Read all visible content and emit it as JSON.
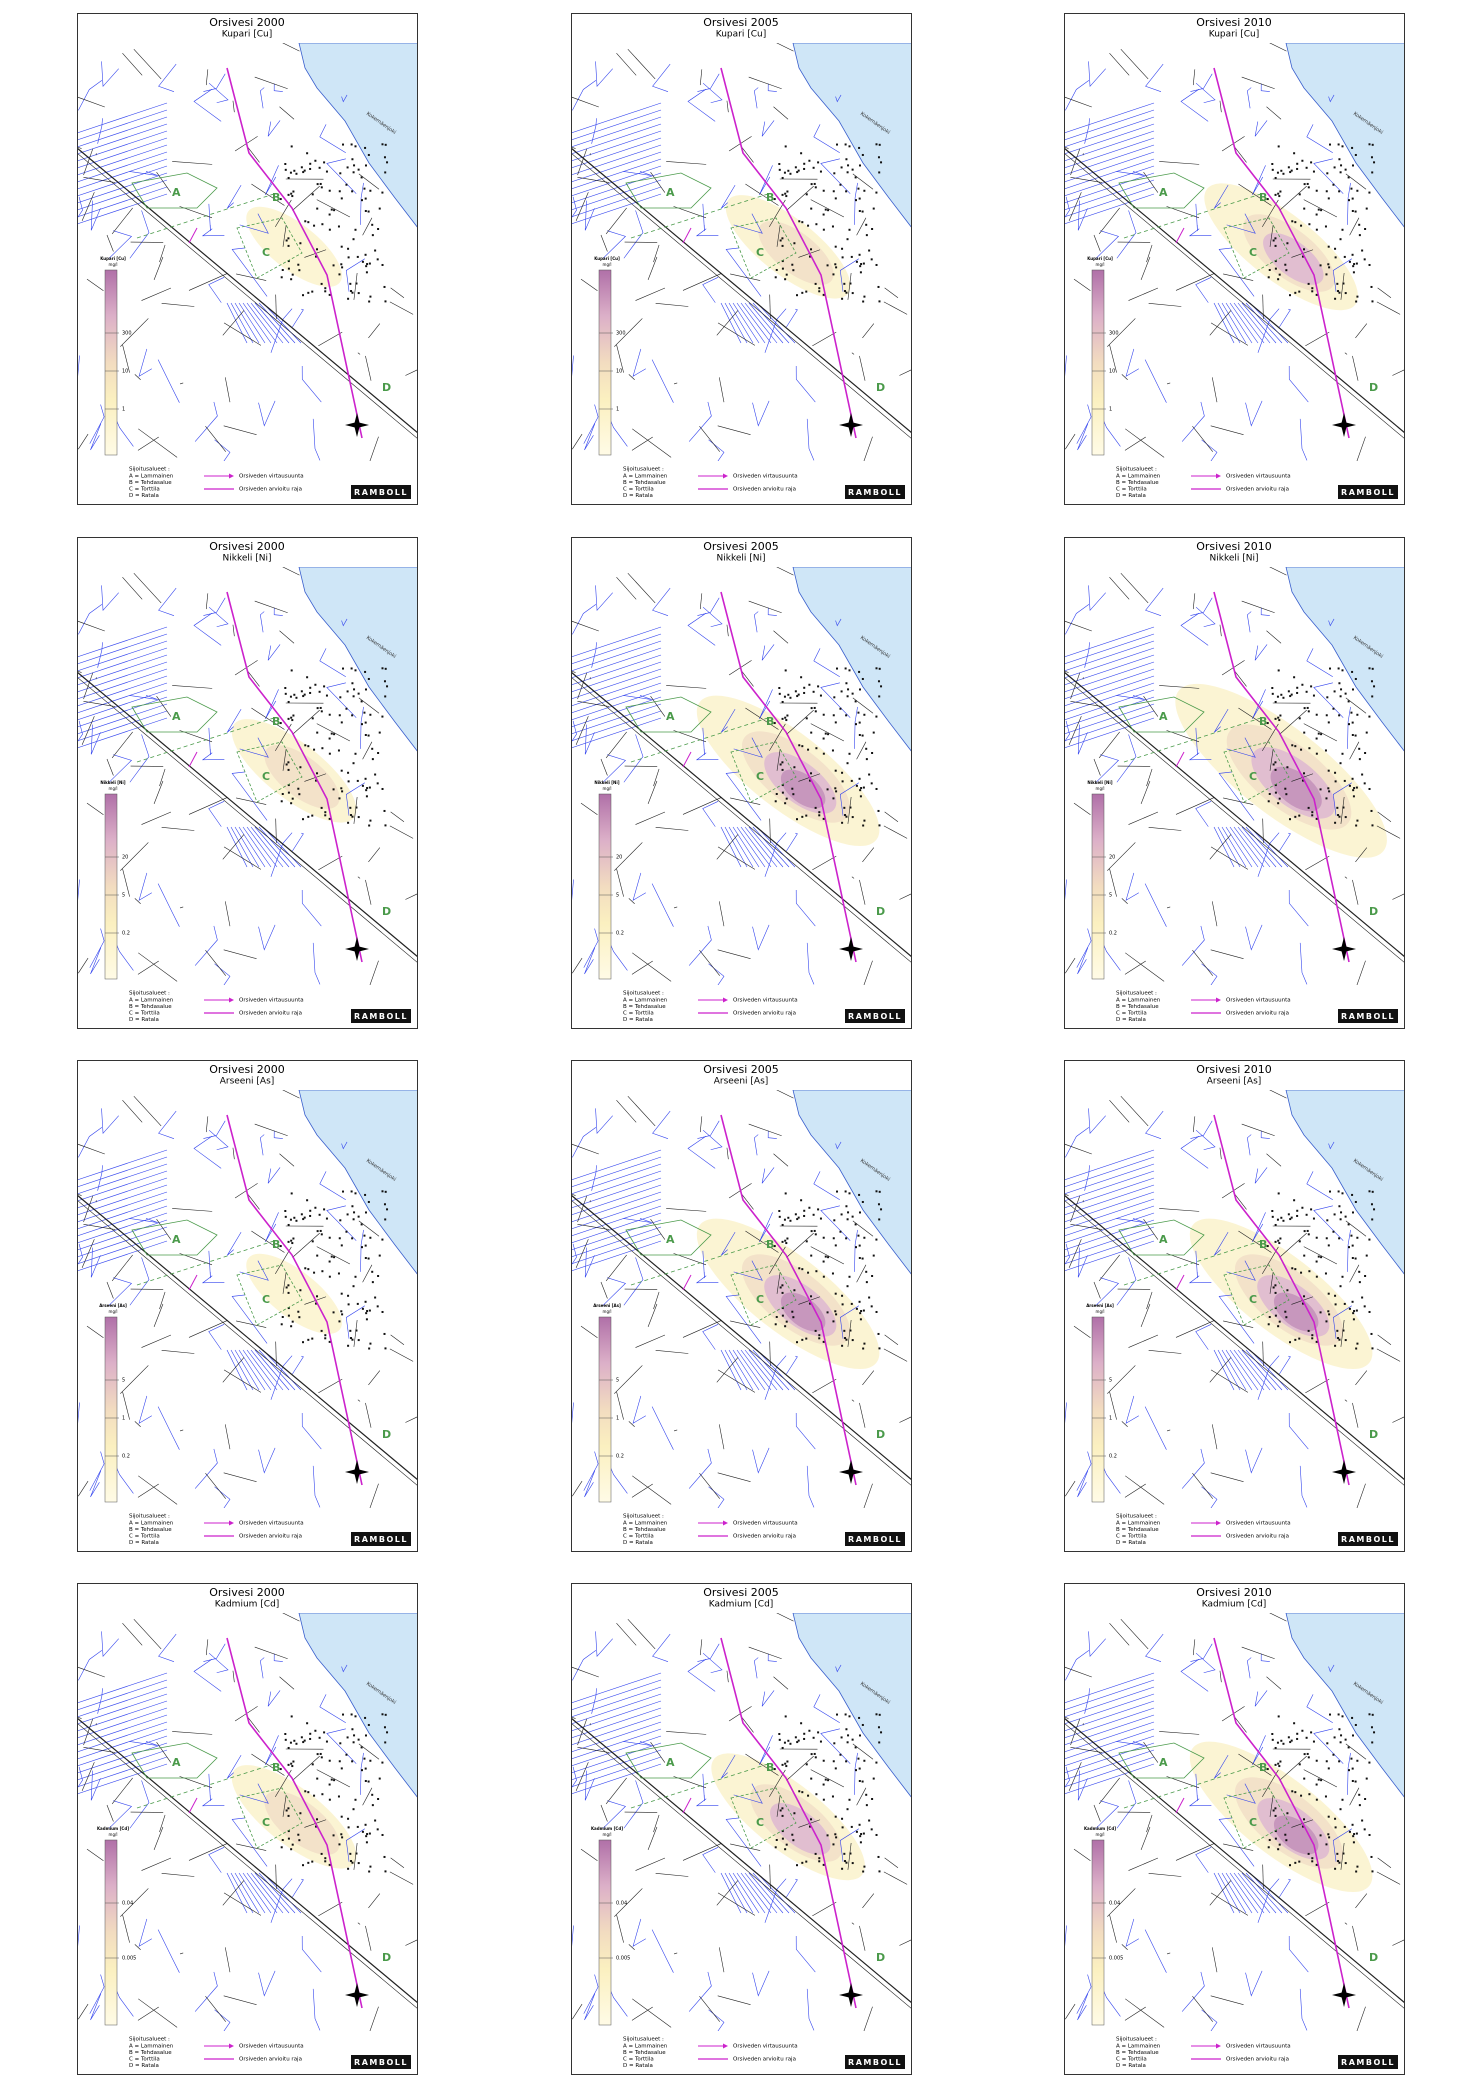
{
  "panels": [
    {
      "title": "Orsivesi 2000",
      "subtitle": "Kupari [Cu]",
      "scale_title": "Kupari [Cu]",
      "scale_unit": "mg/l",
      "scale_labels": [
        "300",
        "10",
        "1"
      ]
    },
    {
      "title": "Orsivesi 2005",
      "subtitle": "Kupari [Cu]",
      "scale_title": "Kupari [Cu]",
      "scale_unit": "mg/l",
      "scale_labels": [
        "300",
        "10",
        "1"
      ]
    },
    {
      "title": "Orsivesi 2010",
      "subtitle": "Kupari [Cu]",
      "scale_title": "Kupari [Cu]",
      "scale_unit": "mg/l",
      "scale_labels": [
        "300",
        "10",
        "1"
      ]
    },
    {
      "title": "Orsivesi 2000",
      "subtitle": "Nikkeli [Ni]",
      "scale_title": "Nikkeli [Ni]",
      "scale_unit": "mg/l",
      "scale_labels": [
        "20",
        "5",
        "0.2"
      ]
    },
    {
      "title": "Orsivesi 2005",
      "subtitle": "Nikkeli [Ni]",
      "scale_title": "Nikkeli [Ni]",
      "scale_unit": "mg/l",
      "scale_labels": [
        "20",
        "5",
        "0.2"
      ]
    },
    {
      "title": "Orsivesi 2010",
      "subtitle": "Nikkeli [Ni]",
      "scale_title": "Nikkeli [Ni]",
      "scale_unit": "mg/l",
      "scale_labels": [
        "20",
        "5",
        "0.2"
      ]
    },
    {
      "title": "Orsivesi 2000",
      "subtitle": "Arseeni [As]",
      "scale_title": "Arseeni [As]",
      "scale_unit": "mg/l",
      "scale_labels": [
        "5",
        "1",
        "0.2"
      ]
    },
    {
      "title": "Orsivesi 2005",
      "subtitle": "Arseeni [As]",
      "scale_title": "Arseeni [As]",
      "scale_unit": "mg/l",
      "scale_labels": [
        "5",
        "1",
        "0.2"
      ]
    },
    {
      "title": "Orsivesi 2010",
      "subtitle": "Arseeni [As]",
      "scale_title": "Arseeni [As]",
      "scale_unit": "mg/l",
      "scale_labels": [
        "5",
        "1",
        "0.2"
      ]
    },
    {
      "title": "Orsivesi 2000",
      "subtitle": "Kadmium [Cd]",
      "scale_title": "Kadmium [Cd]",
      "scale_unit": "mg/l",
      "scale_labels": [
        "0.04",
        "0.005"
      ]
    },
    {
      "title": "Orsivesi 2005",
      "subtitle": "Kadmium [Cd]",
      "scale_title": "Kadmium [Cd]",
      "scale_unit": "mg/l",
      "scale_labels": [
        "0.04",
        "0.005"
      ]
    },
    {
      "title": "Orsivesi 2010",
      "subtitle": "Kadmium [Cd]",
      "scale_title": "Kadmium [Cd]",
      "scale_unit": "mg/l",
      "scale_labels": [
        "0.04",
        "0.005"
      ]
    }
  ],
  "map_labels": {
    "zones": [
      "A",
      "B",
      "C",
      "D"
    ],
    "river": "Kokemäenjoki"
  },
  "legend": {
    "heading": "Sijoitusalueet :",
    "items": [
      "A = Lammainen",
      "B = Tehdasalue",
      "C = Torttila",
      "D = Ratala"
    ],
    "flow": "Orsiveden virtausuunta",
    "boundary": "Orsiveden arvioitu raja"
  },
  "logo": "RAMBOLL"
}
